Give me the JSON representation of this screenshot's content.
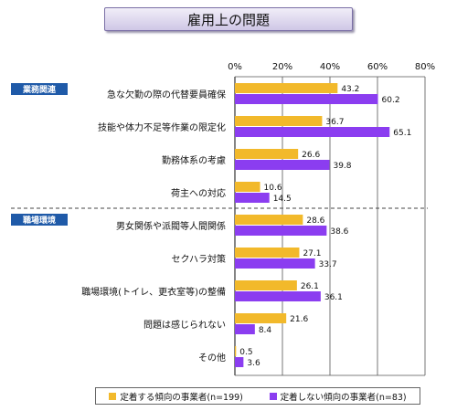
{
  "title": "雇用上の問題",
  "sections": [
    {
      "label": "業務関連"
    },
    {
      "label": "職場環境"
    }
  ],
  "legend": [
    {
      "label": "定着する傾向の事業者(n=199)",
      "color": "#f2b92b"
    },
    {
      "label": "定着しない傾向の事業者(n=83)",
      "color": "#8b3df0"
    }
  ],
  "chart_data": {
    "type": "bar",
    "orientation": "horizontal",
    "title": "雇用上の問題",
    "xlim": [
      0,
      80
    ],
    "x_ticks": [
      "0%",
      "20%",
      "40%",
      "60%",
      "80%"
    ],
    "grid": true,
    "legend_position": "bottom",
    "categories": [
      "急な欠勤の際の代替要員確保",
      "技能や体力不足等作業の限定化",
      "勤務体系の考慮",
      "荷主への対応",
      "男女関係や派閥等人間関係",
      "セクハラ対策",
      "職場環境(トイレ、更衣室等)の整備",
      "問題は感じられない",
      "その他"
    ],
    "series": [
      {
        "name": "定着する傾向の事業者(n=199)",
        "color": "#f2b92b",
        "values": [
          43.2,
          36.7,
          26.6,
          10.6,
          28.6,
          27.1,
          26.1,
          21.6,
          0.5
        ]
      },
      {
        "name": "定着しない傾向の事業者(n=83)",
        "color": "#8b3df0",
        "values": [
          60.2,
          65.1,
          39.8,
          14.5,
          38.6,
          33.7,
          36.1,
          8.4,
          3.6
        ]
      }
    ]
  }
}
